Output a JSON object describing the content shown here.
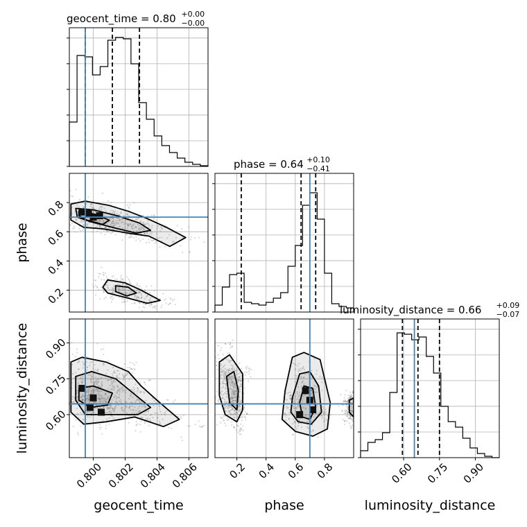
{
  "chart_data": {
    "type": "corner",
    "truth_color": "#4682b4",
    "hist_color": "#000000",
    "parameters": [
      {
        "name": "geocent_time",
        "xlabel": "geocent_time",
        "range": [
          0.7985,
          0.8072
        ],
        "ticks": [
          "0.800",
          "0.802",
          "0.804",
          "0.806"
        ],
        "tick_values": [
          0.8,
          0.802,
          0.804,
          0.806
        ],
        "title_main": "geocent_time = 0.80",
        "title_plus": "+0.00",
        "title_minus": "−0.00",
        "quantiles": [
          0.7995,
          0.8012,
          0.8029
        ],
        "truth": 0.7995,
        "hist": [
          0.32,
          0.8,
          0.79,
          0.66,
          0.72,
          0.91,
          0.93,
          0.92,
          0.74,
          0.46,
          0.34,
          0.22,
          0.15,
          0.1,
          0.06,
          0.03,
          0.015,
          0.005
        ]
      },
      {
        "name": "phase",
        "xlabel": "phase",
        "range": [
          0.05,
          1.0
        ],
        "ticks": [
          "0.2",
          "0.4",
          "0.6",
          "0.8"
        ],
        "tick_values": [
          0.2,
          0.4,
          0.6,
          0.8
        ],
        "title_main": "phase = 0.64",
        "title_plus": "+0.10",
        "title_minus": "−0.41",
        "quantiles": [
          0.23,
          0.64,
          0.74
        ],
        "truth": 0.7,
        "hist": [
          0.05,
          0.18,
          0.27,
          0.28,
          0.07,
          0.06,
          0.05,
          0.07,
          0.1,
          0.14,
          0.33,
          0.48,
          0.77,
          0.86,
          0.67,
          0.28,
          0.06,
          0.04,
          0.03
        ]
      },
      {
        "name": "luminosity_distance",
        "xlabel": "luminosity_distance",
        "range": [
          0.42,
          1.0
        ],
        "ticks": [
          "0.60",
          "0.75",
          "0.90"
        ],
        "tick_values": [
          0.6,
          0.75,
          0.9
        ],
        "title_main": "luminosity_distance = 0.66",
        "title_plus": "+0.09",
        "title_minus": "−0.07",
        "quantiles": [
          0.595,
          0.66,
          0.75
        ],
        "truth": 0.645,
        "hist": [
          0.05,
          0.11,
          0.13,
          0.18,
          0.47,
          0.9,
          0.89,
          0.85,
          0.87,
          0.73,
          0.61,
          0.37,
          0.26,
          0.22,
          0.14,
          0.07,
          0.03,
          0.01,
          0.0
        ]
      }
    ],
    "pairs": [
      {
        "x": "geocent_time",
        "y": "phase",
        "contours": [
          [
            [
              0.7986,
              0.79
            ],
            [
              0.7995,
              0.81
            ],
            [
              0.801,
              0.78
            ],
            [
              0.8022,
              0.74
            ],
            [
              0.8034,
              0.69
            ],
            [
              0.8046,
              0.63
            ],
            [
              0.8058,
              0.56
            ],
            [
              0.8048,
              0.5
            ],
            [
              0.8035,
              0.57
            ],
            [
              0.8022,
              0.59
            ],
            [
              0.8006,
              0.62
            ],
            [
              0.7994,
              0.63
            ],
            [
              0.7986,
              0.68
            ]
          ],
          [
            [
              0.7989,
              0.76
            ],
            [
              0.8,
              0.75
            ],
            [
              0.8015,
              0.71
            ],
            [
              0.8029,
              0.66
            ],
            [
              0.8036,
              0.61
            ],
            [
              0.8027,
              0.59
            ],
            [
              0.8012,
              0.63
            ],
            [
              0.7998,
              0.67
            ],
            [
              0.799,
              0.7
            ]
          ],
          [
            [
              0.7991,
              0.74
            ],
            [
              0.8001,
              0.72
            ],
            [
              0.801,
              0.68
            ],
            [
              0.8006,
              0.65
            ],
            [
              0.7996,
              0.68
            ],
            [
              0.7991,
              0.71
            ]
          ],
          [
            [
              0.8009,
              0.27
            ],
            [
              0.802,
              0.25
            ],
            [
              0.803,
              0.2
            ],
            [
              0.8042,
              0.13
            ],
            [
              0.8034,
              0.11
            ],
            [
              0.802,
              0.15
            ],
            [
              0.8009,
              0.18
            ],
            [
              0.8006,
              0.22
            ]
          ],
          [
            [
              0.8014,
              0.23
            ],
            [
              0.8022,
              0.22
            ],
            [
              0.8027,
              0.18
            ],
            [
              0.8021,
              0.16
            ],
            [
              0.8014,
              0.19
            ]
          ]
        ],
        "dense": [
          [
            0.7993,
            0.735
          ],
          [
            0.8,
            0.7
          ],
          [
            0.7997,
            0.725
          ],
          [
            0.8004,
            0.71
          ]
        ]
      },
      {
        "x": "geocent_time",
        "y": "luminosity_distance",
        "contours": [
          [
            [
              0.7986,
              0.82
            ],
            [
              0.7993,
              0.84
            ],
            [
              0.8008,
              0.82
            ],
            [
              0.8022,
              0.78
            ],
            [
              0.803,
              0.72
            ],
            [
              0.804,
              0.66
            ],
            [
              0.8054,
              0.58
            ],
            [
              0.8044,
              0.55
            ],
            [
              0.8026,
              0.59
            ],
            [
              0.8008,
              0.57
            ],
            [
              0.7994,
              0.56
            ],
            [
              0.7986,
              0.61
            ]
          ],
          [
            [
              0.7989,
              0.76
            ],
            [
              0.7999,
              0.78
            ],
            [
              0.8014,
              0.75
            ],
            [
              0.8025,
              0.69
            ],
            [
              0.8036,
              0.63
            ],
            [
              0.8028,
              0.6
            ],
            [
              0.801,
              0.6
            ],
            [
              0.7995,
              0.6
            ],
            [
              0.7989,
              0.66
            ]
          ],
          [
            [
              0.7991,
              0.71
            ],
            [
              0.8,
              0.72
            ],
            [
              0.8012,
              0.69
            ],
            [
              0.8009,
              0.64
            ],
            [
              0.7998,
              0.63
            ],
            [
              0.7991,
              0.66
            ]
          ]
        ],
        "dense": [
          [
            0.7993,
            0.71
          ],
          [
            0.7998,
            0.63
          ],
          [
            0.8005,
            0.61
          ],
          [
            0.8,
            0.67
          ]
        ]
      },
      {
        "x": "phase",
        "y": "luminosity_distance",
        "contours": [
          [
            [
              0.08,
              0.82
            ],
            [
              0.15,
              0.85
            ],
            [
              0.24,
              0.77
            ],
            [
              0.24,
              0.62
            ],
            [
              0.2,
              0.57
            ],
            [
              0.12,
              0.6
            ],
            [
              0.08,
              0.68
            ]
          ],
          [
            [
              0.13,
              0.76
            ],
            [
              0.18,
              0.78
            ],
            [
              0.21,
              0.7
            ],
            [
              0.2,
              0.62
            ],
            [
              0.15,
              0.65
            ]
          ],
          [
            [
              0.53,
              0.7
            ],
            [
              0.58,
              0.84
            ],
            [
              0.66,
              0.86
            ],
            [
              0.77,
              0.83
            ],
            [
              0.84,
              0.65
            ],
            [
              0.82,
              0.54
            ],
            [
              0.72,
              0.51
            ],
            [
              0.6,
              0.53
            ],
            [
              0.51,
              0.58
            ]
          ],
          [
            [
              0.58,
              0.67
            ],
            [
              0.63,
              0.77
            ],
            [
              0.7,
              0.78
            ],
            [
              0.76,
              0.72
            ],
            [
              0.78,
              0.61
            ],
            [
              0.71,
              0.56
            ],
            [
              0.62,
              0.57
            ],
            [
              0.57,
              0.61
            ]
          ],
          [
            [
              0.63,
              0.65
            ],
            [
              0.66,
              0.72
            ],
            [
              0.72,
              0.71
            ],
            [
              0.74,
              0.63
            ],
            [
              0.7,
              0.58
            ],
            [
              0.65,
              0.59
            ]
          ],
          [
            [
              0.97,
              0.66
            ],
            [
              1.0,
              0.67
            ],
            [
              1.0,
              0.59
            ],
            [
              0.97,
              0.61
            ]
          ]
        ],
        "dense": [
          [
            0.67,
            0.7
          ],
          [
            0.7,
            0.66
          ],
          [
            0.72,
            0.62
          ],
          [
            0.63,
            0.6
          ]
        ]
      }
    ],
    "grid": true
  }
}
